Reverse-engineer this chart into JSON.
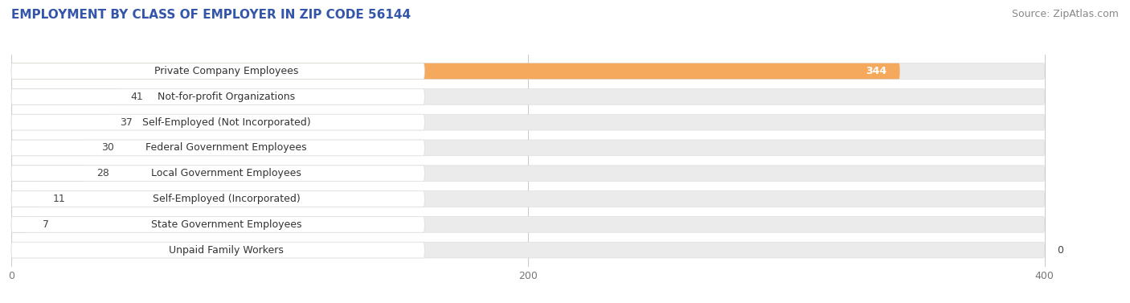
{
  "title": "EMPLOYMENT BY CLASS OF EMPLOYER IN ZIP CODE 56144",
  "source": "Source: ZipAtlas.com",
  "categories": [
    "Private Company Employees",
    "Not-for-profit Organizations",
    "Self-Employed (Not Incorporated)",
    "Federal Government Employees",
    "Local Government Employees",
    "Self-Employed (Incorporated)",
    "State Government Employees",
    "Unpaid Family Workers"
  ],
  "values": [
    344,
    41,
    37,
    30,
    28,
    11,
    7,
    0
  ],
  "bar_colors": [
    "#F5A95C",
    "#F0A0A0",
    "#A8B8E8",
    "#C0A8D8",
    "#72BEC0",
    "#C0C0F0",
    "#F090B0",
    "#F8D0A0"
  ],
  "background_color": "#FFFFFF",
  "bar_bg_color": "#EBEBEB",
  "label_bg_color": "#FFFFFF",
  "xlim": [
    0,
    420
  ],
  "bar_max": 400,
  "xticks": [
    0,
    200,
    400
  ],
  "title_fontsize": 11,
  "source_fontsize": 9,
  "label_fontsize": 9,
  "value_fontsize": 9,
  "title_color": "#3355AA",
  "label_color": "#333333",
  "value_color": "#444444",
  "value_color_inside": "#FFFFFF"
}
